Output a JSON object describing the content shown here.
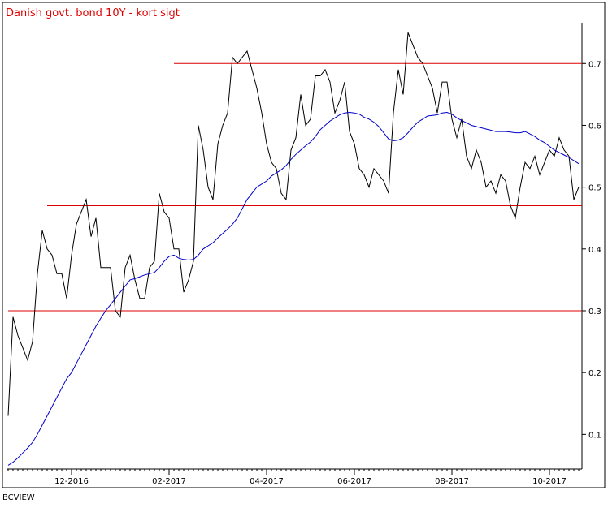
{
  "chart_data": {
    "type": "line",
    "title": "Danish govt. bond 10Y - kort sigt",
    "source": "BCVIEW",
    "categories": [
      null,
      null,
      null,
      null,
      null,
      null,
      null,
      null,
      null,
      null,
      null,
      null,
      null,
      "12-2016",
      null,
      null,
      null,
      null,
      null,
      null,
      null,
      null,
      null,
      null,
      null,
      null,
      null,
      null,
      null,
      null,
      null,
      null,
      null,
      "02-2017",
      null,
      null,
      null,
      null,
      null,
      null,
      null,
      null,
      null,
      null,
      null,
      null,
      null,
      null,
      null,
      null,
      null,
      null,
      null,
      "04-2017",
      null,
      null,
      null,
      null,
      null,
      null,
      null,
      null,
      null,
      null,
      null,
      null,
      null,
      null,
      null,
      null,
      null,
      "06-2017",
      null,
      null,
      null,
      null,
      null,
      null,
      null,
      null,
      null,
      null,
      null,
      null,
      null,
      null,
      null,
      null,
      null,
      null,
      null,
      "08-2017",
      null,
      null,
      null,
      null,
      null,
      null,
      null,
      null,
      null,
      null,
      null,
      null,
      null,
      null,
      null,
      null,
      null,
      null,
      null,
      "10-2017",
      null,
      null,
      null,
      null,
      null,
      null
    ],
    "series": [
      {
        "color": "#000000",
        "values": [
          0.13,
          0.29,
          0.26,
          0.24,
          0.22,
          0.25,
          0.36,
          0.43,
          0.4,
          0.39,
          0.36,
          0.36,
          0.32,
          0.39,
          0.44,
          0.46,
          0.48,
          0.42,
          0.45,
          0.37,
          0.37,
          0.37,
          0.3,
          0.29,
          0.37,
          0.39,
          0.35,
          0.32,
          0.32,
          0.37,
          0.38,
          0.49,
          0.46,
          0.45,
          0.4,
          0.4,
          0.33,
          0.35,
          0.38,
          0.6,
          0.56,
          0.5,
          0.48,
          0.57,
          0.6,
          0.62,
          0.71,
          0.7,
          0.71,
          0.72,
          0.69,
          0.66,
          0.62,
          0.57,
          0.54,
          0.53,
          0.49,
          0.48,
          0.56,
          0.58,
          0.65,
          0.6,
          0.61,
          0.68,
          0.68,
          0.69,
          0.67,
          0.62,
          0.64,
          0.67,
          0.59,
          0.57,
          0.53,
          0.52,
          0.5,
          0.53,
          0.52,
          0.51,
          0.49,
          0.62,
          0.69,
          0.65,
          0.75,
          0.73,
          0.71,
          0.7,
          0.68,
          0.66,
          0.62,
          0.67,
          0.67,
          0.61,
          0.58,
          0.61,
          0.55,
          0.53,
          0.56,
          0.54,
          0.5,
          0.51,
          0.49,
          0.52,
          0.51,
          0.47,
          0.45,
          0.5,
          0.54,
          0.53,
          0.55,
          0.52,
          0.54,
          0.56,
          0.55,
          0.58,
          0.56,
          0.55,
          0.48,
          0.5
        ]
      },
      {
        "color": "#0000cc",
        "values": [
          0.05,
          0.055,
          0.062,
          0.07,
          0.078,
          0.087,
          0.1,
          0.115,
          0.13,
          0.145,
          0.16,
          0.175,
          0.19,
          0.2,
          0.215,
          0.23,
          0.245,
          0.26,
          0.275,
          0.288,
          0.3,
          0.31,
          0.32,
          0.33,
          0.34,
          0.35,
          0.352,
          0.355,
          0.358,
          0.36,
          0.362,
          0.37,
          0.38,
          0.388,
          0.39,
          0.385,
          0.383,
          0.382,
          0.383,
          0.39,
          0.4,
          0.405,
          0.41,
          0.418,
          0.425,
          0.432,
          0.44,
          0.45,
          0.465,
          0.48,
          0.49,
          0.5,
          0.505,
          0.51,
          0.518,
          0.523,
          0.528,
          0.535,
          0.545,
          0.553,
          0.56,
          0.567,
          0.573,
          0.582,
          0.593,
          0.6,
          0.607,
          0.612,
          0.617,
          0.62,
          0.621,
          0.62,
          0.618,
          0.613,
          0.61,
          0.605,
          0.598,
          0.588,
          0.578,
          0.575,
          0.576,
          0.58,
          0.588,
          0.597,
          0.605,
          0.61,
          0.615,
          0.616,
          0.617,
          0.62,
          0.621,
          0.618,
          0.612,
          0.608,
          0.604,
          0.6,
          0.598,
          0.596,
          0.594,
          0.592,
          0.59,
          0.59,
          0.59,
          0.589,
          0.588,
          0.588,
          0.59,
          0.586,
          0.582,
          0.576,
          0.572,
          0.566,
          0.56,
          0.556,
          0.552,
          0.548,
          0.543,
          0.538
        ]
      }
    ],
    "hlines": [
      {
        "value": 0.7,
        "start": 34,
        "color": "#dd0000"
      },
      {
        "value": 0.47,
        "start": 8,
        "color": "#dd0000"
      },
      {
        "value": 0.3,
        "start": 0,
        "color": "#dd0000"
      }
    ],
    "ylim": [
      0.044,
      0.766
    ],
    "yticks": [
      0.1,
      0.2,
      0.3,
      0.4,
      0.5,
      0.6,
      0.7
    ],
    "y_axis_side": "right",
    "grid": false
  }
}
